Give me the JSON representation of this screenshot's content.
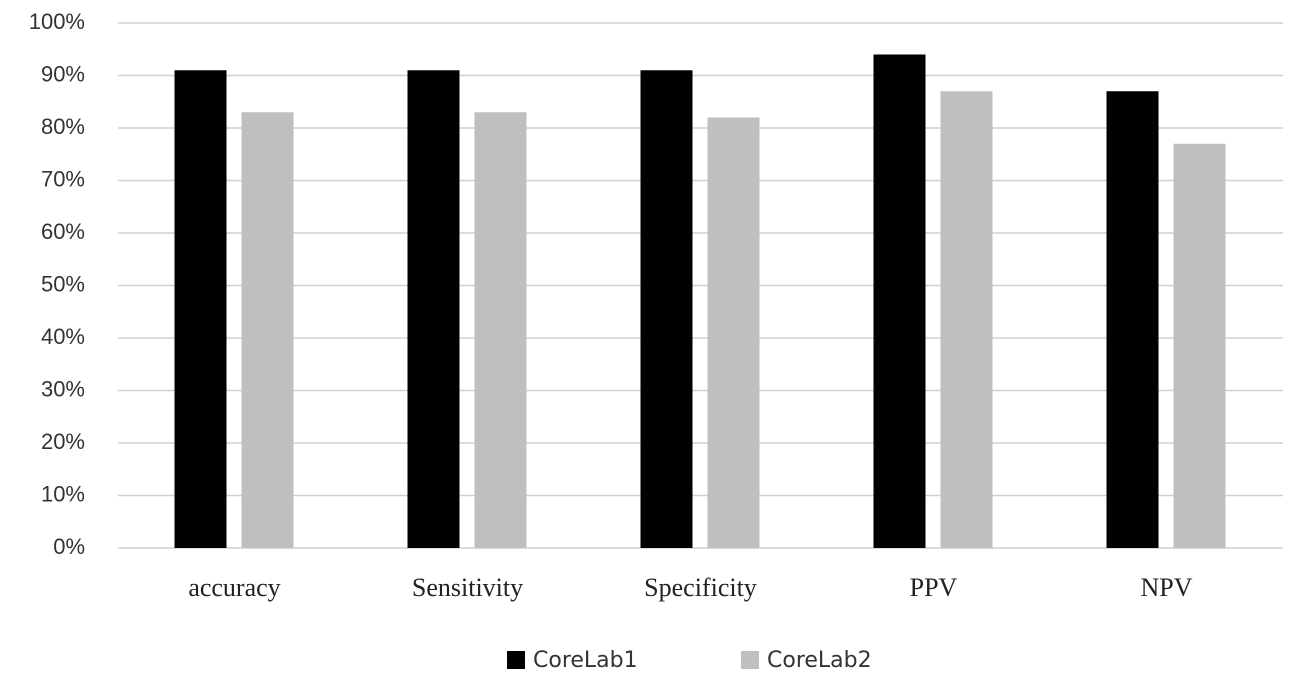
{
  "chart_data": {
    "type": "bar",
    "categories": [
      "accuracy",
      "Sensitivity",
      "Specificity",
      "PPV",
      "NPV"
    ],
    "series": [
      {
        "name": "CoreLab1",
        "color": "#000000",
        "values": [
          91,
          91,
          91,
          94,
          87
        ]
      },
      {
        "name": "CoreLab2",
        "color": "#bfbfbf",
        "values": [
          83,
          83,
          82,
          87,
          77
        ]
      }
    ],
    "ylim": [
      0,
      100
    ],
    "yticks": [
      {
        "value": 0,
        "label": "0%"
      },
      {
        "value": 10,
        "label": "10%"
      },
      {
        "value": 20,
        "label": "20%"
      },
      {
        "value": 30,
        "label": "30%"
      },
      {
        "value": 40,
        "label": "40%"
      },
      {
        "value": 50,
        "label": "50%"
      },
      {
        "value": 60,
        "label": "60%"
      },
      {
        "value": 70,
        "label": "70%"
      },
      {
        "value": 80,
        "label": "80%"
      },
      {
        "value": 90,
        "label": "90%"
      },
      {
        "value": 100,
        "label": "100%"
      }
    ],
    "grid": true,
    "legend": "bottom"
  }
}
